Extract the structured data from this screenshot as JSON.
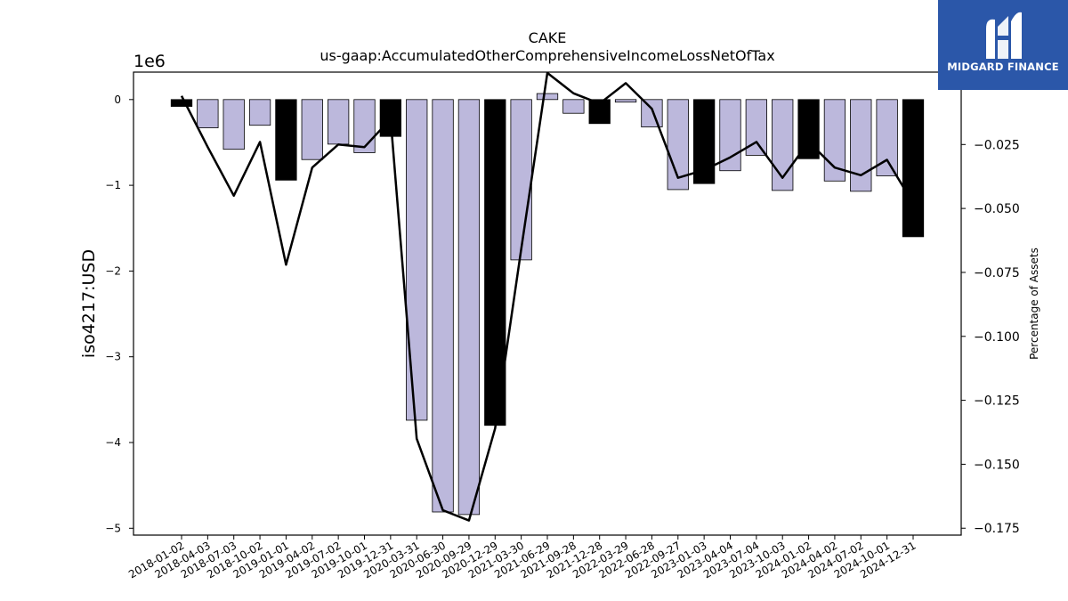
{
  "chart_data": {
    "type": "bar",
    "title": "CAKE",
    "subtitle": "us-gaap:AccumulatedOtherComprehensiveIncomeLossNetOfTax",
    "ylabel": "iso4217:USD",
    "y_offset_label": "1e6",
    "y2label": "Percentage of Assets",
    "ylim": [
      -5.08,
      0.32
    ],
    "y2lim": [
      -0.1777,
      0.0033
    ],
    "yticks": [
      0,
      -1,
      -2,
      -3,
      -4,
      -5
    ],
    "ytick_labels": [
      "0",
      "−1",
      "−2",
      "−3",
      "−4",
      "−5"
    ],
    "y2ticks": [
      0.0,
      -0.025,
      -0.05,
      -0.075,
      -0.1,
      -0.125,
      -0.15,
      -0.175
    ],
    "y2tick_labels": [
      "0.000",
      "−0.025",
      "−0.050",
      "−0.075",
      "−0.100",
      "−0.125",
      "−0.150",
      "−0.175"
    ],
    "grid": false,
    "categories": [
      "2018-01-02",
      "2018-04-03",
      "2018-07-03",
      "2018-10-02",
      "2019-01-01",
      "2019-04-02",
      "2019-07-02",
      "2019-10-01",
      "2019-12-31",
      "2020-03-31",
      "2020-06-30",
      "2020-09-29",
      "2020-12-29",
      "2021-03-30",
      "2021-06-29",
      "2021-09-28",
      "2021-12-28",
      "2022-03-29",
      "2022-06-28",
      "2022-09-27",
      "2023-01-03",
      "2023-04-04",
      "2023-07-04",
      "2023-10-03",
      "2024-01-02",
      "2024-04-02",
      "2024-07-02",
      "2024-10-01",
      "2024-12-31"
    ],
    "series": [
      {
        "kind": "bar",
        "values": [
          -0.08,
          -0.33,
          -0.58,
          -0.3,
          -0.94,
          -0.7,
          -0.52,
          -0.62,
          -0.43,
          -3.74,
          -4.81,
          -4.84,
          -3.8,
          -1.87,
          0.07,
          -0.16,
          -0.28,
          -0.03,
          -0.32,
          -1.05,
          -0.98,
          -0.83,
          -0.65,
          -1.06,
          -0.69,
          -0.95,
          -1.07,
          -0.89,
          -1.6
        ],
        "annual": [
          true,
          false,
          false,
          false,
          true,
          false,
          false,
          false,
          true,
          false,
          false,
          false,
          true,
          false,
          false,
          false,
          true,
          false,
          false,
          false,
          true,
          false,
          false,
          false,
          true,
          false,
          false,
          false,
          true
        ],
        "quarter_color": "#bcb8dc",
        "annual_color": "#000000"
      },
      {
        "kind": "line",
        "axis": "right",
        "values": [
          -0.006,
          -0.026,
          -0.045,
          -0.024,
          -0.072,
          -0.034,
          -0.025,
          -0.026,
          -0.015,
          -0.14,
          -0.168,
          -0.172,
          -0.136,
          -0.066,
          0.003,
          -0.005,
          -0.009,
          -0.001,
          -0.011,
          -0.038,
          -0.035,
          -0.03,
          -0.024,
          -0.038,
          -0.024,
          -0.034,
          -0.037,
          -0.031,
          -0.048
        ],
        "color": "#000000"
      }
    ]
  },
  "logo": {
    "text": "MIDGARD FINANCE",
    "background": "#2b57a9"
  }
}
